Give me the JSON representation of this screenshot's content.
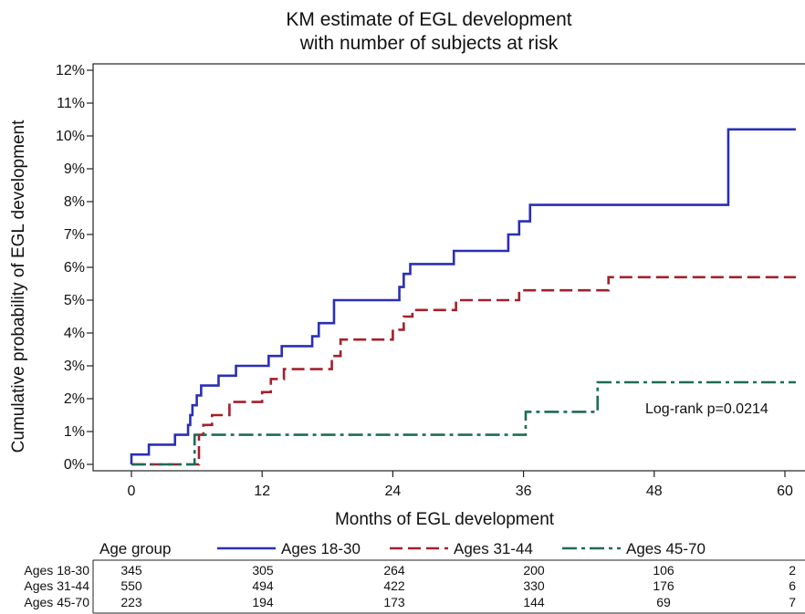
{
  "chart_data": {
    "type": "line",
    "subtype": "kaplan-meier-step",
    "title_line1": "KM estimate of EGL development",
    "title_line2": "with number of subjects at risk",
    "xlabel": "Months of EGL development",
    "ylabel": "Cumulative probability of EGL development",
    "xlim": [
      0,
      61
    ],
    "ylim": [
      0,
      12
    ],
    "x_ticks": [
      0,
      12,
      24,
      36,
      48,
      60
    ],
    "y_ticks": [
      0,
      1,
      2,
      3,
      4,
      5,
      6,
      7,
      8,
      9,
      10,
      11,
      12
    ],
    "y_tick_suffix": "%",
    "grid": false,
    "annotation": "Log-rank p=0.0214",
    "legend_title": "Age group",
    "series": [
      {
        "name": "Ages 18-30",
        "color": "#2a2fb5",
        "dash": "solid",
        "x": [
          0,
          0,
          1.6,
          1.6,
          4,
          4,
          5.2,
          5.4,
          5.6,
          6,
          6.4,
          6.6,
          8,
          8.2,
          8.6,
          9.6,
          12,
          12.6,
          13.8,
          16.6,
          17.2,
          18.6,
          24,
          24.6,
          25,
          25.6,
          29.6,
          34.6,
          35.6,
          36.6,
          37.2,
          42,
          54.8,
          54.8,
          61
        ],
        "y": [
          0,
          0.3,
          0.3,
          0.6,
          0.6,
          0.9,
          1.2,
          1.5,
          1.8,
          2.1,
          2.4,
          2.4,
          2.7,
          2.7,
          2.7,
          3.0,
          3.0,
          3.3,
          3.6,
          3.9,
          4.3,
          5.0,
          5.0,
          5.4,
          5.8,
          6.1,
          6.5,
          7.0,
          7.4,
          7.9,
          7.9,
          7.9,
          7.9,
          10.2,
          10.2
        ]
      },
      {
        "name": "Ages 31-44",
        "color": "#a3202c",
        "dash": "dashed",
        "x": [
          0,
          5.8,
          6.2,
          6.6,
          7.4,
          9,
          12,
          12.8,
          14,
          18.4,
          19.2,
          22,
          24,
          25,
          25.8,
          29.8,
          35.6,
          36.8,
          43.8,
          61
        ],
        "y": [
          0,
          0,
          0.9,
          1.2,
          1.5,
          1.9,
          2.2,
          2.6,
          2.9,
          3.3,
          3.8,
          3.8,
          4.1,
          4.5,
          4.7,
          5.0,
          5.3,
          5.3,
          5.7,
          5.7
        ]
      },
      {
        "name": "Ages 45-70",
        "color": "#1f6b55",
        "dash": "dashdot",
        "x": [
          0,
          5.8,
          5.8,
          36.2,
          36.2,
          42.8,
          42.8,
          61
        ],
        "y": [
          0,
          0,
          0.9,
          0.9,
          1.6,
          1.6,
          2.5,
          2.5
        ]
      }
    ]
  },
  "risk_table": {
    "rows": [
      {
        "label": "Ages 18-30",
        "values": [
          "345",
          "305",
          "264",
          "200",
          "106",
          "2"
        ]
      },
      {
        "label": "Ages 31-44",
        "values": [
          "550",
          "494",
          "422",
          "330",
          "176",
          "6"
        ]
      },
      {
        "label": "Ages 45-70",
        "values": [
          "223",
          "194",
          "173",
          "144",
          "69",
          "7"
        ]
      }
    ]
  }
}
